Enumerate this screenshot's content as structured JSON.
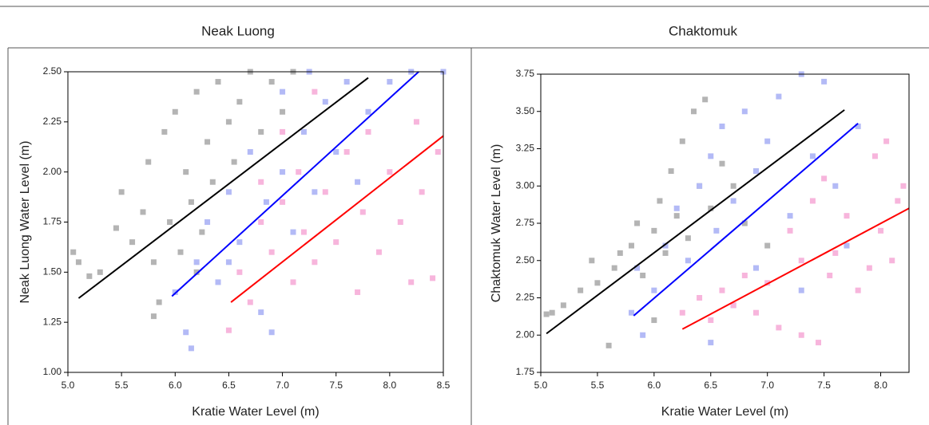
{
  "chart_data": [
    {
      "type": "scatter",
      "title": "Neak Luong",
      "x_label": "Kratie Water Level (m)",
      "y_label": "Neak Luong Water Level (m)",
      "xlim": [
        5.0,
        8.5
      ],
      "ylim": [
        1.0,
        2.5
      ],
      "xticks": [
        {
          "value": 5.0,
          "label": "5.0"
        },
        {
          "value": 5.5,
          "label": "5.5"
        },
        {
          "value": 6.0,
          "label": "6.0"
        },
        {
          "value": 6.5,
          "label": "6.5"
        },
        {
          "value": 7.0,
          "label": "7.0"
        },
        {
          "value": 7.5,
          "label": "7.5"
        },
        {
          "value": 8.0,
          "label": "8.0"
        },
        {
          "value": 8.5,
          "label": "8.5"
        }
      ],
      "yticks": [
        {
          "value": 1.0,
          "label": "1.00"
        },
        {
          "value": 1.25,
          "label": "1.25"
        },
        {
          "value": 1.5,
          "label": "1.50"
        },
        {
          "value": 1.75,
          "label": "1.75"
        },
        {
          "value": 2.0,
          "label": "2.00"
        },
        {
          "value": 2.25,
          "label": "2.25"
        },
        {
          "value": 2.5,
          "label": "2.50"
        }
      ],
      "grid": false,
      "series": [
        {
          "color": "#b4b4b4",
          "x": [
            5.05,
            5.1,
            5.2,
            5.3,
            5.45,
            5.5,
            5.6,
            5.7,
            5.75,
            5.8,
            5.85,
            5.9,
            5.95,
            6.0,
            6.05,
            6.1,
            6.15,
            6.2,
            6.25,
            6.3,
            6.35,
            6.4,
            6.5,
            6.55,
            6.6,
            6.7,
            6.8,
            6.9,
            7.0,
            7.1,
            5.8,
            6.2
          ],
          "values": [
            1.6,
            1.55,
            1.48,
            1.5,
            1.72,
            1.9,
            1.65,
            1.8,
            2.05,
            1.55,
            1.35,
            2.2,
            1.75,
            2.3,
            1.6,
            2.0,
            1.85,
            2.4,
            1.7,
            2.15,
            1.95,
            2.45,
            2.25,
            2.05,
            2.35,
            2.5,
            2.2,
            2.45,
            2.3,
            2.5,
            1.28,
            1.5
          ]
        },
        {
          "color": "#b3baf6",
          "x": [
            6.0,
            6.1,
            6.15,
            6.2,
            6.3,
            6.4,
            6.5,
            6.6,
            6.7,
            6.8,
            6.85,
            6.9,
            7.0,
            7.1,
            7.2,
            7.25,
            7.3,
            7.4,
            7.5,
            7.6,
            7.7,
            7.8,
            8.0,
            8.2,
            8.5,
            7.0,
            6.5
          ],
          "values": [
            1.4,
            1.2,
            1.12,
            1.55,
            1.75,
            1.45,
            1.9,
            1.65,
            2.1,
            1.3,
            1.85,
            1.2,
            2.0,
            1.7,
            2.2,
            2.5,
            1.9,
            2.35,
            2.1,
            2.45,
            1.95,
            2.3,
            2.45,
            2.5,
            2.5,
            2.4,
            1.55
          ]
        },
        {
          "color": "#f7b5dc",
          "x": [
            6.5,
            6.6,
            6.7,
            6.8,
            6.9,
            7.0,
            7.1,
            7.15,
            7.2,
            7.3,
            7.4,
            7.5,
            7.6,
            7.7,
            7.75,
            7.8,
            7.9,
            8.0,
            8.1,
            8.2,
            8.25,
            8.3,
            8.4,
            8.45,
            7.0,
            6.8,
            7.3
          ],
          "values": [
            1.21,
            1.5,
            1.35,
            1.75,
            1.6,
            1.85,
            1.45,
            2.0,
            1.7,
            1.55,
            1.9,
            1.65,
            2.1,
            1.4,
            1.8,
            2.2,
            1.6,
            2.0,
            1.75,
            1.45,
            2.25,
            1.9,
            1.47,
            2.1,
            2.2,
            1.95,
            2.4
          ]
        }
      ],
      "fit_lines": [
        {
          "color": "#000000",
          "x": [
            5.1,
            7.8
          ],
          "values": [
            1.37,
            2.47
          ]
        },
        {
          "color": "#0000ff",
          "x": [
            5.97,
            8.27
          ],
          "values": [
            1.38,
            2.5
          ]
        },
        {
          "color": "#ff0000",
          "x": [
            6.52,
            8.5
          ],
          "values": [
            1.35,
            2.18
          ]
        }
      ]
    },
    {
      "type": "scatter",
      "title": "Chaktomuk",
      "x_label": "Kratie Water Level (m)",
      "y_label": "Chaktomuk Water Level (m)",
      "xlim": [
        5.0,
        8.25
      ],
      "ylim": [
        1.75,
        3.75
      ],
      "xticks": [
        {
          "value": 5.0,
          "label": "5.0"
        },
        {
          "value": 5.5,
          "label": "5.5"
        },
        {
          "value": 6.0,
          "label": "6.0"
        },
        {
          "value": 6.5,
          "label": "6.5"
        },
        {
          "value": 7.0,
          "label": "7.0"
        },
        {
          "value": 7.5,
          "label": "7.5"
        },
        {
          "value": 8.0,
          "label": "8.0"
        }
      ],
      "yticks": [
        {
          "value": 1.75,
          "label": "1.75"
        },
        {
          "value": 2.0,
          "label": "2.00"
        },
        {
          "value": 2.25,
          "label": "2.25"
        },
        {
          "value": 2.5,
          "label": "2.50"
        },
        {
          "value": 2.75,
          "label": "2.75"
        },
        {
          "value": 3.0,
          "label": "3.00"
        },
        {
          "value": 3.25,
          "label": "3.25"
        },
        {
          "value": 3.5,
          "label": "3.50"
        },
        {
          "value": 3.75,
          "label": "3.75"
        }
      ],
      "grid": false,
      "series": [
        {
          "color": "#b4b4b4",
          "x": [
            5.05,
            5.1,
            5.2,
            5.35,
            5.45,
            5.5,
            5.6,
            5.65,
            5.7,
            5.8,
            5.85,
            5.9,
            6.0,
            6.05,
            6.1,
            6.15,
            6.2,
            6.25,
            6.3,
            6.35,
            6.4,
            6.45,
            6.5,
            6.6,
            6.7,
            6.8,
            6.9,
            7.0,
            6.0
          ],
          "values": [
            2.14,
            2.15,
            2.2,
            2.3,
            2.5,
            2.35,
            1.93,
            2.45,
            2.55,
            2.6,
            2.75,
            2.4,
            2.7,
            2.9,
            2.55,
            3.1,
            2.8,
            3.3,
            2.65,
            3.5,
            3.0,
            3.58,
            2.85,
            3.15,
            3.0,
            2.75,
            3.1,
            2.6,
            2.1
          ]
        },
        {
          "color": "#b3baf6",
          "x": [
            5.8,
            5.85,
            5.9,
            6.0,
            6.1,
            6.2,
            6.3,
            6.4,
            6.5,
            6.55,
            6.6,
            6.7,
            6.8,
            6.9,
            7.0,
            7.1,
            7.2,
            7.3,
            7.4,
            7.5,
            7.6,
            7.7,
            7.8,
            6.5,
            6.7,
            7.3,
            6.9
          ],
          "values": [
            2.15,
            2.45,
            2.0,
            2.3,
            2.6,
            2.85,
            2.5,
            3.0,
            3.2,
            2.7,
            3.4,
            2.9,
            3.5,
            3.1,
            3.3,
            3.6,
            2.8,
            3.75,
            3.2,
            3.7,
            3.0,
            2.6,
            3.4,
            1.95,
            2.2,
            2.3,
            2.45
          ]
        },
        {
          "color": "#f7b5dc",
          "x": [
            6.25,
            6.4,
            6.5,
            6.6,
            6.7,
            6.8,
            6.9,
            7.0,
            7.1,
            7.2,
            7.3,
            7.4,
            7.5,
            7.45,
            7.6,
            7.7,
            7.8,
            7.9,
            7.95,
            8.0,
            8.05,
            8.1,
            8.15,
            8.2,
            7.3,
            7.55
          ],
          "values": [
            2.15,
            2.25,
            2.1,
            2.3,
            2.2,
            2.4,
            2.15,
            2.35,
            2.05,
            2.7,
            2.5,
            2.9,
            3.05,
            1.95,
            2.55,
            2.8,
            2.3,
            2.45,
            3.2,
            2.7,
            3.3,
            2.5,
            2.9,
            3.0,
            2.0,
            2.4
          ]
        }
      ],
      "fit_lines": [
        {
          "color": "#000000",
          "x": [
            5.05,
            7.68
          ],
          "values": [
            2.01,
            3.51
          ]
        },
        {
          "color": "#0000ff",
          "x": [
            5.82,
            7.8
          ],
          "values": [
            2.13,
            3.42
          ]
        },
        {
          "color": "#ff0000",
          "x": [
            6.25,
            8.25
          ],
          "values": [
            2.04,
            2.85
          ]
        }
      ]
    }
  ]
}
